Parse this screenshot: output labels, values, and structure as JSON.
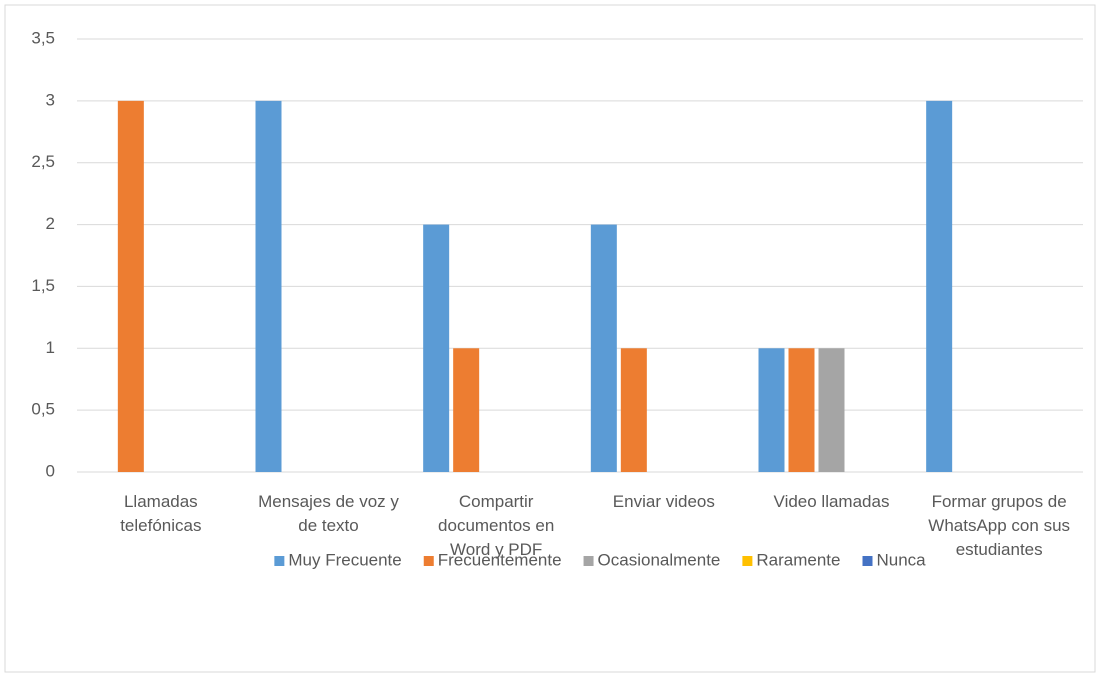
{
  "chart_data": {
    "type": "bar",
    "categories": [
      "Llamadas telefónicas",
      "Mensajes de voz y de texto",
      "Compartir documentos en Word y PDF",
      "Enviar videos",
      "Video llamadas",
      "Formar grupos de WhatsApp con sus estudiantes"
    ],
    "series": [
      {
        "name": "Muy Frecuente",
        "color": "#5b9bd5",
        "values": [
          0,
          3,
          2,
          2,
          1,
          3
        ]
      },
      {
        "name": "Frecuentemente",
        "color": "#ed7d31",
        "values": [
          3,
          0,
          1,
          1,
          1,
          0
        ]
      },
      {
        "name": "Ocasionalmente",
        "color": "#a5a5a5",
        "values": [
          0,
          0,
          0,
          0,
          1,
          0
        ]
      },
      {
        "name": "Raramente",
        "color": "#ffc000",
        "values": [
          0,
          0,
          0,
          0,
          0,
          0
        ]
      },
      {
        "name": "Nunca",
        "color": "#4472c4",
        "values": [
          0,
          0,
          0,
          0,
          0,
          0
        ]
      }
    ],
    "ylim": [
      0,
      3.5
    ],
    "yticks": [
      0,
      {
        "value": 0.5,
        "label": "0,5"
      },
      1,
      {
        "value": 1.5,
        "label": "1,5"
      },
      2,
      {
        "value": 2.5,
        "label": "2,5"
      },
      3,
      {
        "value": 3.5,
        "label": "3,5"
      }
    ],
    "grid": true,
    "legend": "bottom"
  }
}
